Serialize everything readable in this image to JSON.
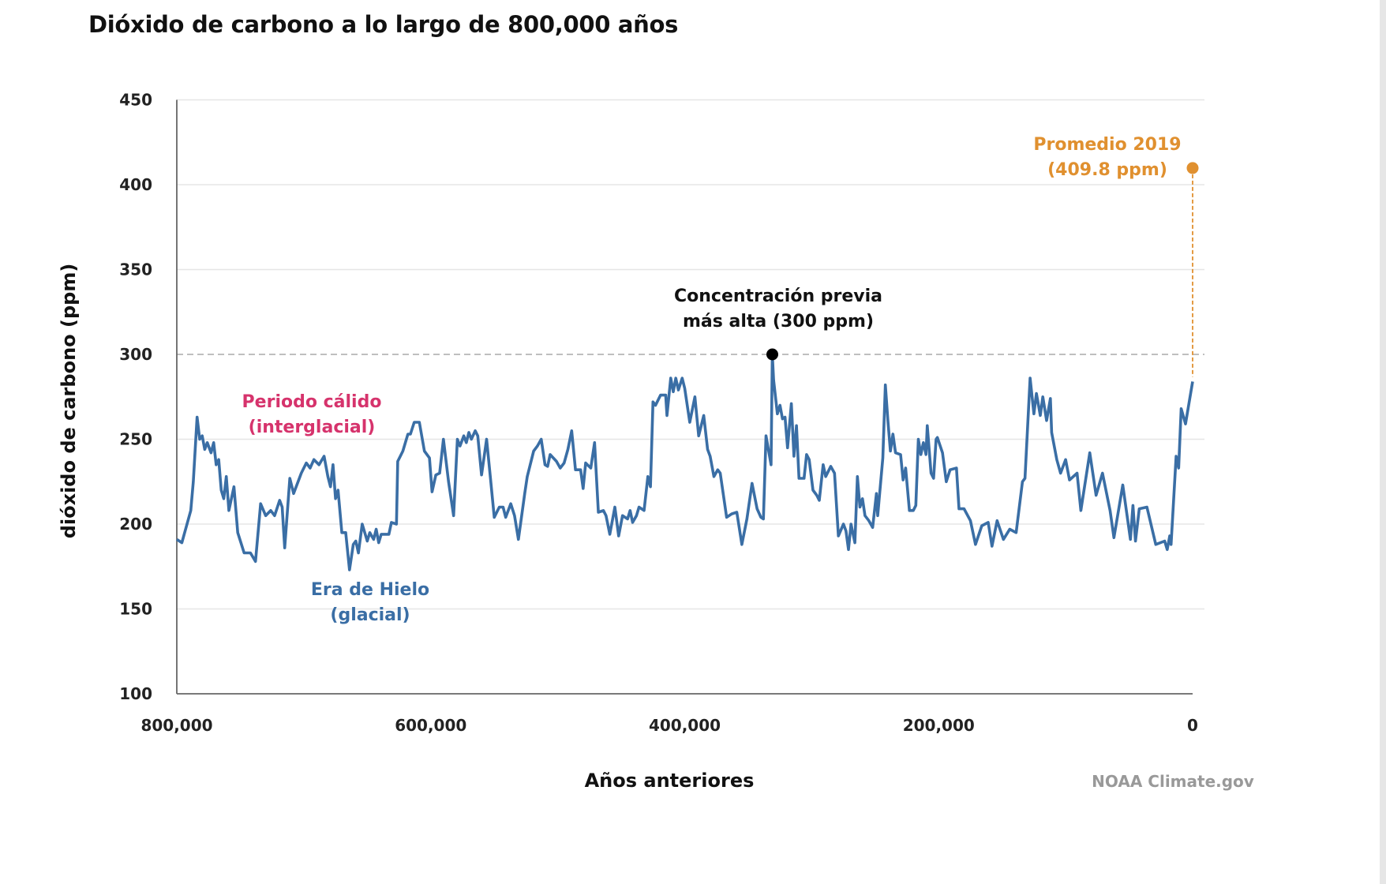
{
  "chart_data": {
    "type": "line",
    "title": "Dióxido de carbono a lo largo de 800,000 años",
    "xlabel": "Años anteriores",
    "ylabel": "dióxido de carbono (ppm)",
    "xlim": [
      800000,
      0
    ],
    "ylim": [
      100,
      450
    ],
    "x_ticks": [
      800000,
      600000,
      400000,
      200000,
      0
    ],
    "x_tick_labels": [
      "800,000",
      "600,000",
      "400,000",
      "200,000",
      "0"
    ],
    "y_ticks": [
      100,
      150,
      200,
      250,
      300,
      350,
      400,
      450
    ],
    "y_tick_labels": [
      "100",
      "150",
      "200",
      "250",
      "300",
      "350",
      "400",
      "450"
    ],
    "grid": true,
    "source": "NOAA Climate.gov",
    "colors": {
      "line": "#3a6ea5",
      "warm": "#d6336c",
      "glacial": "#3a6ea5",
      "current": "#e0902f",
      "reference": "#aaaaaa"
    },
    "reference_line": {
      "y": 300
    },
    "annotations": {
      "previous_high": {
        "lines": [
          "Concentración previa",
          "más alta (300 ppm)"
        ],
        "x": 331000,
        "y": 300
      },
      "current": {
        "lines": [
          "Promedio 2019",
          "(409.8 ppm)"
        ],
        "x": 0,
        "y": 409.8
      },
      "warm": {
        "lines": [
          "Periodo cálido",
          "(interglacial)"
        ]
      },
      "glacial": {
        "lines": [
          "Era de Hielo",
          "(glacial)"
        ]
      }
    },
    "series": [
      {
        "x_unit": "thousand years ago",
        "points": [
          [
            800,
            191
          ],
          [
            796,
            189
          ],
          [
            789,
            208
          ],
          [
            787,
            225
          ],
          [
            784,
            263
          ],
          [
            782,
            250
          ],
          [
            780,
            252
          ],
          [
            778,
            244
          ],
          [
            776,
            248
          ],
          [
            773,
            242
          ],
          [
            771,
            248
          ],
          [
            769,
            235
          ],
          [
            767,
            238
          ],
          [
            765,
            220
          ],
          [
            763,
            215
          ],
          [
            761,
            228
          ],
          [
            759,
            208
          ],
          [
            755,
            222
          ],
          [
            752,
            195
          ],
          [
            747,
            183
          ],
          [
            742,
            183
          ],
          [
            738,
            178
          ],
          [
            734,
            212
          ],
          [
            730,
            205
          ],
          [
            726,
            208
          ],
          [
            723,
            205
          ],
          [
            719,
            214
          ],
          [
            717,
            210
          ],
          [
            715,
            186
          ],
          [
            711,
            227
          ],
          [
            708,
            218
          ],
          [
            702,
            230
          ],
          [
            698,
            236
          ],
          [
            695,
            233
          ],
          [
            692,
            238
          ],
          [
            688,
            235
          ],
          [
            684,
            240
          ],
          [
            681,
            228
          ],
          [
            679,
            222
          ],
          [
            677,
            235
          ],
          [
            675,
            215
          ],
          [
            673,
            220
          ],
          [
            670,
            195
          ],
          [
            667,
            195
          ],
          [
            664,
            173
          ],
          [
            661,
            188
          ],
          [
            659,
            190
          ],
          [
            657,
            183
          ],
          [
            654,
            200
          ],
          [
            650,
            190
          ],
          [
            648,
            195
          ],
          [
            645,
            191
          ],
          [
            643,
            197
          ],
          [
            641,
            189
          ],
          [
            639,
            194
          ],
          [
            633,
            194
          ],
          [
            631,
            201
          ],
          [
            627,
            200
          ],
          [
            626,
            237
          ],
          [
            622,
            243
          ],
          [
            618,
            253
          ],
          [
            616,
            253
          ],
          [
            613,
            260
          ],
          [
            609,
            260
          ],
          [
            605,
            243
          ],
          [
            601,
            239
          ],
          [
            599,
            219
          ],
          [
            596,
            229
          ],
          [
            593,
            230
          ],
          [
            590,
            250
          ],
          [
            586,
            225
          ],
          [
            582,
            205
          ],
          [
            579,
            250
          ],
          [
            577,
            246
          ],
          [
            574,
            252
          ],
          [
            572,
            248
          ],
          [
            570,
            254
          ],
          [
            568,
            250
          ],
          [
            565,
            255
          ],
          [
            563,
            252
          ],
          [
            560,
            229
          ],
          [
            556,
            250
          ],
          [
            553,
            227
          ],
          [
            550,
            204
          ],
          [
            546,
            210
          ],
          [
            543,
            210
          ],
          [
            541,
            204
          ],
          [
            537,
            212
          ],
          [
            534,
            205
          ],
          [
            531,
            191
          ],
          [
            526,
            218
          ],
          [
            524,
            228
          ],
          [
            519,
            243
          ],
          [
            516,
            246
          ],
          [
            513,
            250
          ],
          [
            510,
            235
          ],
          [
            508,
            234
          ],
          [
            506,
            241
          ],
          [
            501,
            237
          ],
          [
            498,
            233
          ],
          [
            495,
            236
          ],
          [
            492,
            244
          ],
          [
            489,
            255
          ],
          [
            486,
            232
          ],
          [
            482,
            232
          ],
          [
            480,
            221
          ],
          [
            478,
            236
          ],
          [
            474,
            233
          ],
          [
            471,
            248
          ],
          [
            468,
            207
          ],
          [
            464,
            208
          ],
          [
            462,
            205
          ],
          [
            459,
            194
          ],
          [
            455,
            210
          ],
          [
            452,
            193
          ],
          [
            449,
            205
          ],
          [
            445,
            203
          ],
          [
            443,
            208
          ],
          [
            441,
            201
          ],
          [
            438,
            205
          ],
          [
            436,
            210
          ],
          [
            432,
            208
          ],
          [
            429,
            228
          ],
          [
            427,
            222
          ],
          [
            425,
            272
          ],
          [
            423,
            270
          ],
          [
            419,
            276
          ],
          [
            415,
            276
          ],
          [
            414,
            264
          ],
          [
            411,
            286
          ],
          [
            409,
            278
          ],
          [
            407,
            286
          ],
          [
            405,
            279
          ],
          [
            402,
            286
          ],
          [
            400,
            280
          ],
          [
            396,
            260
          ],
          [
            392,
            275
          ],
          [
            389,
            252
          ],
          [
            385,
            264
          ],
          [
            382,
            244
          ],
          [
            380,
            240
          ],
          [
            377,
            228
          ],
          [
            374,
            232
          ],
          [
            372,
            230
          ],
          [
            367,
            204
          ],
          [
            363,
            206
          ],
          [
            359,
            207
          ],
          [
            355,
            188
          ],
          [
            351,
            203
          ],
          [
            347,
            224
          ],
          [
            343,
            209
          ],
          [
            340,
            204
          ],
          [
            338,
            203
          ],
          [
            336,
            252
          ],
          [
            332,
            235
          ],
          [
            331,
            300
          ],
          [
            330,
            285
          ],
          [
            327,
            265
          ],
          [
            325,
            270
          ],
          [
            323,
            262
          ],
          [
            321,
            263
          ],
          [
            319,
            245
          ],
          [
            316,
            271
          ],
          [
            314,
            240
          ],
          [
            312,
            258
          ],
          [
            310,
            227
          ],
          [
            306,
            227
          ],
          [
            304,
            241
          ],
          [
            302,
            238
          ],
          [
            299,
            220
          ],
          [
            296,
            217
          ],
          [
            294,
            214
          ],
          [
            291,
            235
          ],
          [
            289,
            228
          ],
          [
            285,
            234
          ],
          [
            282,
            230
          ],
          [
            279,
            193
          ],
          [
            275,
            200
          ],
          [
            273,
            196
          ],
          [
            271,
            185
          ],
          [
            269,
            200
          ],
          [
            266,
            189
          ],
          [
            264,
            228
          ],
          [
            262,
            210
          ],
          [
            260,
            215
          ],
          [
            258,
            205
          ],
          [
            255,
            202
          ],
          [
            252,
            198
          ],
          [
            249,
            218
          ],
          [
            248,
            205
          ],
          [
            244,
            239
          ],
          [
            242,
            282
          ],
          [
            240,
            261
          ],
          [
            238,
            243
          ],
          [
            236,
            253
          ],
          [
            234,
            242
          ],
          [
            230,
            241
          ],
          [
            228,
            226
          ],
          [
            226,
            233
          ],
          [
            223,
            208
          ],
          [
            220,
            208
          ],
          [
            218,
            211
          ],
          [
            216,
            250
          ],
          [
            214,
            241
          ],
          [
            212,
            248
          ],
          [
            210,
            241
          ],
          [
            209,
            258
          ],
          [
            206,
            230
          ],
          [
            204,
            227
          ],
          [
            202,
            250
          ],
          [
            201,
            251
          ],
          [
            197,
            242
          ],
          [
            194,
            225
          ],
          [
            191,
            232
          ],
          [
            186,
            233
          ],
          [
            184,
            209
          ],
          [
            180,
            209
          ],
          [
            175,
            202
          ],
          [
            171,
            188
          ],
          [
            166,
            199
          ],
          [
            161,
            201
          ],
          [
            158,
            187
          ],
          [
            154,
            202
          ],
          [
            149,
            191
          ],
          [
            144,
            197
          ],
          [
            139,
            195
          ],
          [
            134,
            225
          ],
          [
            132,
            227
          ],
          [
            128,
            286
          ],
          [
            125,
            265
          ],
          [
            123,
            277
          ],
          [
            120,
            264
          ],
          [
            118,
            275
          ],
          [
            115,
            261
          ],
          [
            112,
            274
          ],
          [
            111,
            254
          ],
          [
            107,
            238
          ],
          [
            104,
            230
          ],
          [
            100,
            238
          ],
          [
            97,
            226
          ],
          [
            91,
            230
          ],
          [
            88,
            208
          ],
          [
            81,
            242
          ],
          [
            76,
            217
          ],
          [
            71,
            230
          ],
          [
            65,
            208
          ],
          [
            62,
            192
          ],
          [
            55,
            223
          ],
          [
            49,
            191
          ],
          [
            47,
            211
          ],
          [
            45,
            190
          ],
          [
            42,
            209
          ],
          [
            36,
            210
          ],
          [
            29,
            188
          ],
          [
            22,
            190
          ],
          [
            20,
            185
          ],
          [
            18,
            193
          ],
          [
            17,
            188
          ],
          [
            13,
            240
          ],
          [
            11,
            233
          ],
          [
            9,
            268
          ],
          [
            5.6,
            259
          ],
          [
            0,
            284
          ]
        ]
      }
    ]
  }
}
